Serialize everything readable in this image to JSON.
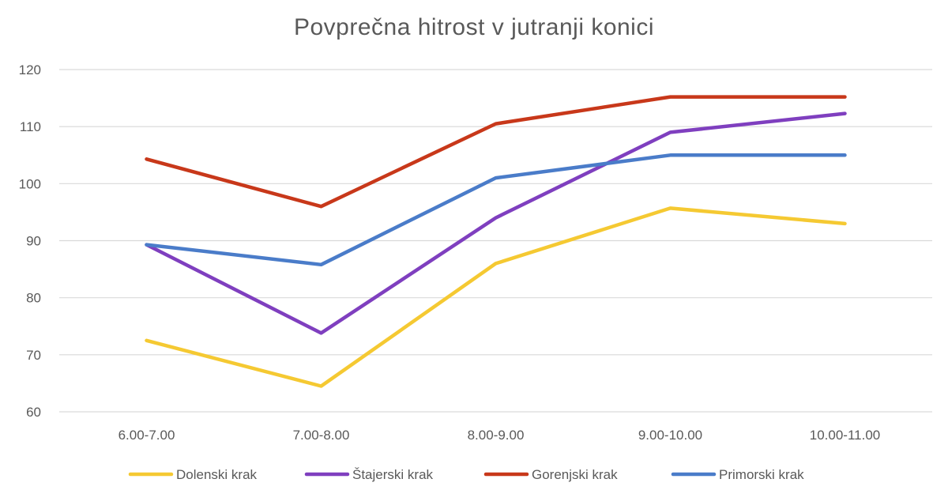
{
  "chart_data": {
    "type": "line",
    "title": "Povprečna hitrost v jutranji konici",
    "categories": [
      "6.00-7.00",
      "7.00-8.00",
      "8.00-9.00",
      "9.00-10.00",
      "10.00-11.00"
    ],
    "ylim": [
      60,
      120
    ],
    "yticks": [
      60,
      70,
      80,
      90,
      100,
      110,
      120
    ],
    "grid": true,
    "legend_position": "bottom",
    "series": [
      {
        "name": "Dolenski krak",
        "color": "#F5C932",
        "values": [
          72.5,
          64.5,
          86,
          95.7,
          93
        ]
      },
      {
        "name": "Štajerski krak",
        "color": "#7F3FBF",
        "values": [
          89.3,
          73.8,
          94,
          109,
          112.3
        ]
      },
      {
        "name": "Gorenjski krak",
        "color": "#C8381A",
        "values": [
          104.3,
          96,
          110.5,
          115.2,
          115.2
        ]
      },
      {
        "name": "Primorski krak",
        "color": "#4A7CC9",
        "values": [
          89.3,
          85.8,
          101,
          105,
          105
        ]
      }
    ]
  }
}
